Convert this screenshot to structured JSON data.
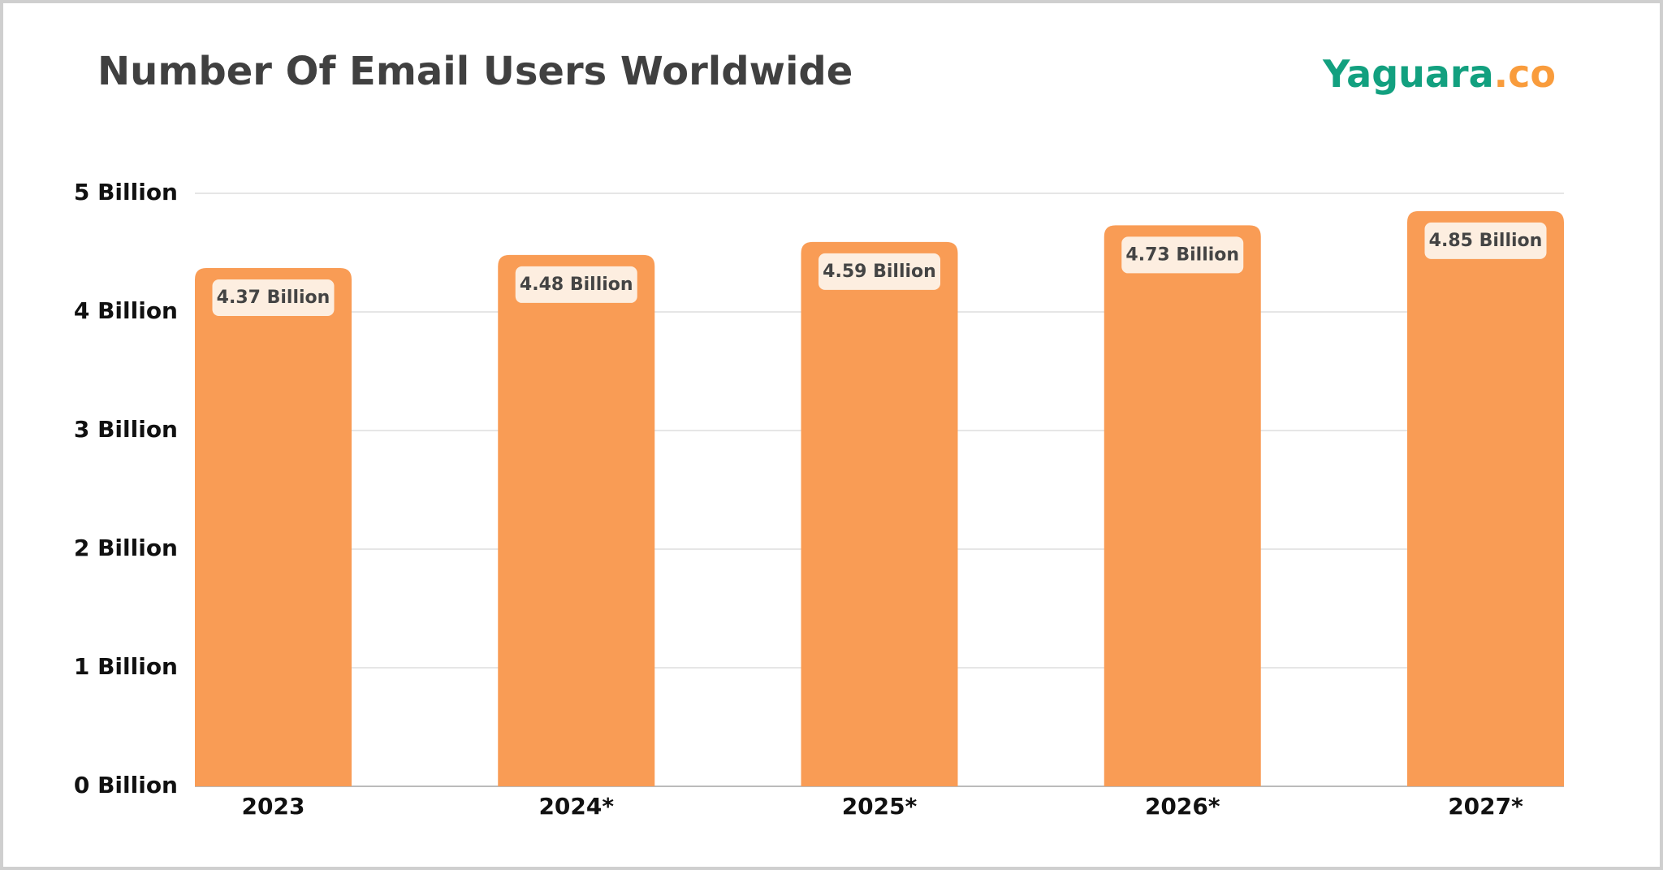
{
  "chart_data": {
    "type": "bar",
    "title": "Number Of Email Users Worldwide",
    "logo": {
      "name": "Yaguara",
      "suffix": ".co"
    },
    "categories": [
      "2023",
      "2024*",
      "2025*",
      "2026*",
      "2027*"
    ],
    "values": [
      4.37,
      4.48,
      4.59,
      4.73,
      4.85
    ],
    "value_labels": [
      "4.37 Billion",
      "4.48 Billion",
      "4.59 Billion",
      "4.73 Billion",
      "4.85 Billion"
    ],
    "color": "#f99c55",
    "ylim": [
      0,
      5
    ],
    "yticks": [
      {
        "value": 0,
        "label": "0 Billion"
      },
      {
        "value": 1,
        "label": "1 Billion"
      },
      {
        "value": 2,
        "label": "2 Billion"
      },
      {
        "value": 3,
        "label": "3 Billion"
      },
      {
        "value": 4,
        "label": "4 Billion"
      },
      {
        "value": 5,
        "label": "5 Billion"
      }
    ],
    "grid": true
  }
}
